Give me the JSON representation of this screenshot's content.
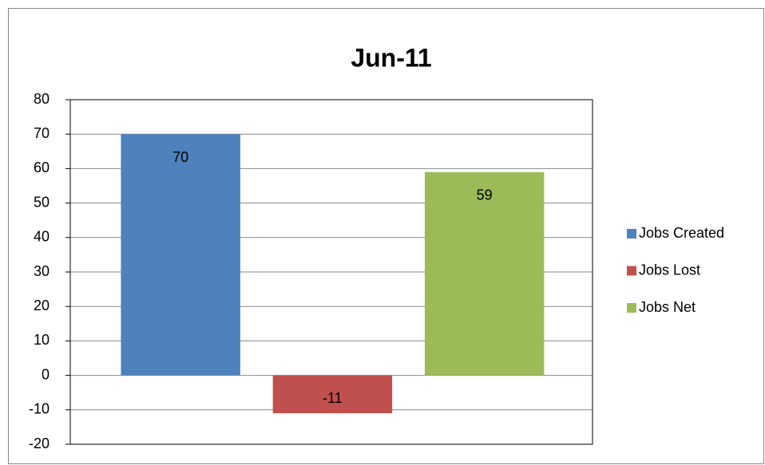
{
  "chart_data": {
    "type": "bar",
    "title": "Jun-11",
    "categories": [
      null
    ],
    "series": [
      {
        "name": "Jobs Created",
        "color": "#4f81bd",
        "values": [
          70
        ]
      },
      {
        "name": "Jobs Lost",
        "color": "#c0504d",
        "values": [
          -11
        ]
      },
      {
        "name": "Jobs Net",
        "color": "#9bbb59",
        "values": [
          59
        ]
      }
    ],
    "ylim": [
      -20,
      80
    ],
    "yticks": [
      -20,
      -10,
      0,
      10,
      20,
      30,
      40,
      50,
      60,
      70,
      80
    ],
    "grid": true,
    "legend": "right",
    "data_labels": true
  }
}
